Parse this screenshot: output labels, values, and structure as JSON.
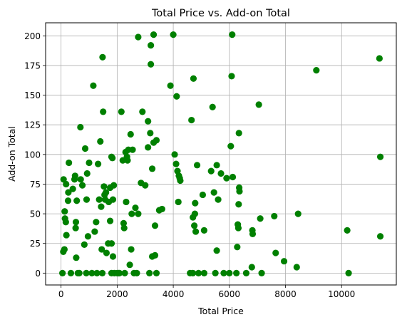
{
  "chart_data": {
    "type": "scatter",
    "title": "Total Price vs. Add-on Total",
    "xlabel": "Total Price",
    "ylabel": "Add-on Total",
    "xlim": [
      -550,
      11950
    ],
    "ylim": [
      -10,
      211
    ],
    "xticks": [
      0,
      2000,
      4000,
      6000,
      8000,
      10000
    ],
    "yticks": [
      0,
      25,
      50,
      75,
      100,
      125,
      150,
      175,
      200
    ],
    "xtick_labels": [
      "0",
      "2000",
      "4000",
      "6000",
      "8000",
      "10000"
    ],
    "ytick_labels": [
      "0",
      "25",
      "50",
      "75",
      "100",
      "125",
      "150",
      "175",
      "200"
    ],
    "grid": true,
    "legend": "none",
    "marker_color": "#008000",
    "points": [
      [
        50,
        0
      ],
      [
        80,
        18
      ],
      [
        90,
        79
      ],
      [
        120,
        20
      ],
      [
        130,
        52
      ],
      [
        140,
        46
      ],
      [
        170,
        43
      ],
      [
        180,
        75
      ],
      [
        190,
        32
      ],
      [
        250,
        61
      ],
      [
        260,
        68
      ],
      [
        280,
        93
      ],
      [
        350,
        0
      ],
      [
        420,
        71
      ],
      [
        480,
        79
      ],
      [
        500,
        82
      ],
      [
        520,
        38
      ],
      [
        530,
        43
      ],
      [
        540,
        13
      ],
      [
        560,
        61
      ],
      [
        600,
        0
      ],
      [
        650,
        0
      ],
      [
        690,
        123
      ],
      [
        700,
        79
      ],
      [
        760,
        74
      ],
      [
        830,
        24
      ],
      [
        860,
        105
      ],
      [
        900,
        0
      ],
      [
        910,
        62
      ],
      [
        930,
        84
      ],
      [
        960,
        31
      ],
      [
        1000,
        93
      ],
      [
        1100,
        0
      ],
      [
        1150,
        158
      ],
      [
        1200,
        35
      ],
      [
        1250,
        43
      ],
      [
        1280,
        0
      ],
      [
        1320,
        92
      ],
      [
        1360,
        62
      ],
      [
        1400,
        111
      ],
      [
        1430,
        56
      ],
      [
        1450,
        20
      ],
      [
        1470,
        0
      ],
      [
        1480,
        182
      ],
      [
        1500,
        136
      ],
      [
        1530,
        73
      ],
      [
        1550,
        66
      ],
      [
        1570,
        62
      ],
      [
        1600,
        68
      ],
      [
        1620,
        17
      ],
      [
        1680,
        25
      ],
      [
        1700,
        60
      ],
      [
        1750,
        44
      ],
      [
        1750,
        72
      ],
      [
        1800,
        98
      ],
      [
        1800,
        25
      ],
      [
        1800,
        0
      ],
      [
        1830,
        97
      ],
      [
        1850,
        62
      ],
      [
        1850,
        14
      ],
      [
        1880,
        74
      ],
      [
        1900,
        0
      ],
      [
        2000,
        0
      ],
      [
        2050,
        0
      ],
      [
        2080,
        0
      ],
      [
        2150,
        136
      ],
      [
        2200,
        95
      ],
      [
        2230,
        42
      ],
      [
        2250,
        38
      ],
      [
        2270,
        0
      ],
      [
        2300,
        102
      ],
      [
        2320,
        60
      ],
      [
        2350,
        98
      ],
      [
        2370,
        95
      ],
      [
        2400,
        104
      ],
      [
        2450,
        7
      ],
      [
        2480,
        117
      ],
      [
        2500,
        20
      ],
      [
        2520,
        50
      ],
      [
        2550,
        104
      ],
      [
        2600,
        0
      ],
      [
        2650,
        55
      ],
      [
        2700,
        0
      ],
      [
        2750,
        50
      ],
      [
        2750,
        199
      ],
      [
        2850,
        76
      ],
      [
        2900,
        136
      ],
      [
        3000,
        74
      ],
      [
        3100,
        128
      ],
      [
        3100,
        106
      ],
      [
        3150,
        0
      ],
      [
        3180,
        118
      ],
      [
        3200,
        192
      ],
      [
        3200,
        176
      ],
      [
        3250,
        14
      ],
      [
        3250,
        88
      ],
      [
        3300,
        110
      ],
      [
        3300,
        201
      ],
      [
        3350,
        40
      ],
      [
        3350,
        15
      ],
      [
        3400,
        0
      ],
      [
        3400,
        112
      ],
      [
        3500,
        53
      ],
      [
        3600,
        54
      ],
      [
        3900,
        158
      ],
      [
        4000,
        201
      ],
      [
        4050,
        100
      ],
      [
        4100,
        92
      ],
      [
        4120,
        149
      ],
      [
        4150,
        86
      ],
      [
        4180,
        60
      ],
      [
        4200,
        82
      ],
      [
        4230,
        80
      ],
      [
        4250,
        78
      ],
      [
        4600,
        0
      ],
      [
        4650,
        129
      ],
      [
        4700,
        0
      ],
      [
        4700,
        47
      ],
      [
        4720,
        164
      ],
      [
        4750,
        40
      ],
      [
        4770,
        50
      ],
      [
        4780,
        59
      ],
      [
        4800,
        35
      ],
      [
        4850,
        91
      ],
      [
        4900,
        0
      ],
      [
        5050,
        66
      ],
      [
        5100,
        0
      ],
      [
        5100,
        36
      ],
      [
        5350,
        86
      ],
      [
        5400,
        140
      ],
      [
        5450,
        68
      ],
      [
        5500,
        0
      ],
      [
        5550,
        91
      ],
      [
        5550,
        19
      ],
      [
        5600,
        62
      ],
      [
        5700,
        84
      ],
      [
        5800,
        0
      ],
      [
        5900,
        80
      ],
      [
        6000,
        0
      ],
      [
        6050,
        107
      ],
      [
        6080,
        166
      ],
      [
        6100,
        201
      ],
      [
        6120,
        81
      ],
      [
        6250,
        0
      ],
      [
        6280,
        22
      ],
      [
        6300,
        41
      ],
      [
        6320,
        38
      ],
      [
        6330,
        58
      ],
      [
        6340,
        118
      ],
      [
        6350,
        72
      ],
      [
        6360,
        69
      ],
      [
        6600,
        0
      ],
      [
        6800,
        5
      ],
      [
        6820,
        36
      ],
      [
        6830,
        33
      ],
      [
        7050,
        142
      ],
      [
        7100,
        46
      ],
      [
        7150,
        0
      ],
      [
        7600,
        48
      ],
      [
        7650,
        17
      ],
      [
        7950,
        10
      ],
      [
        8400,
        5
      ],
      [
        8450,
        50
      ],
      [
        9100,
        171
      ],
      [
        10200,
        36
      ],
      [
        10250,
        0
      ],
      [
        11350,
        181
      ],
      [
        11380,
        98
      ],
      [
        11380,
        31
      ]
    ]
  }
}
